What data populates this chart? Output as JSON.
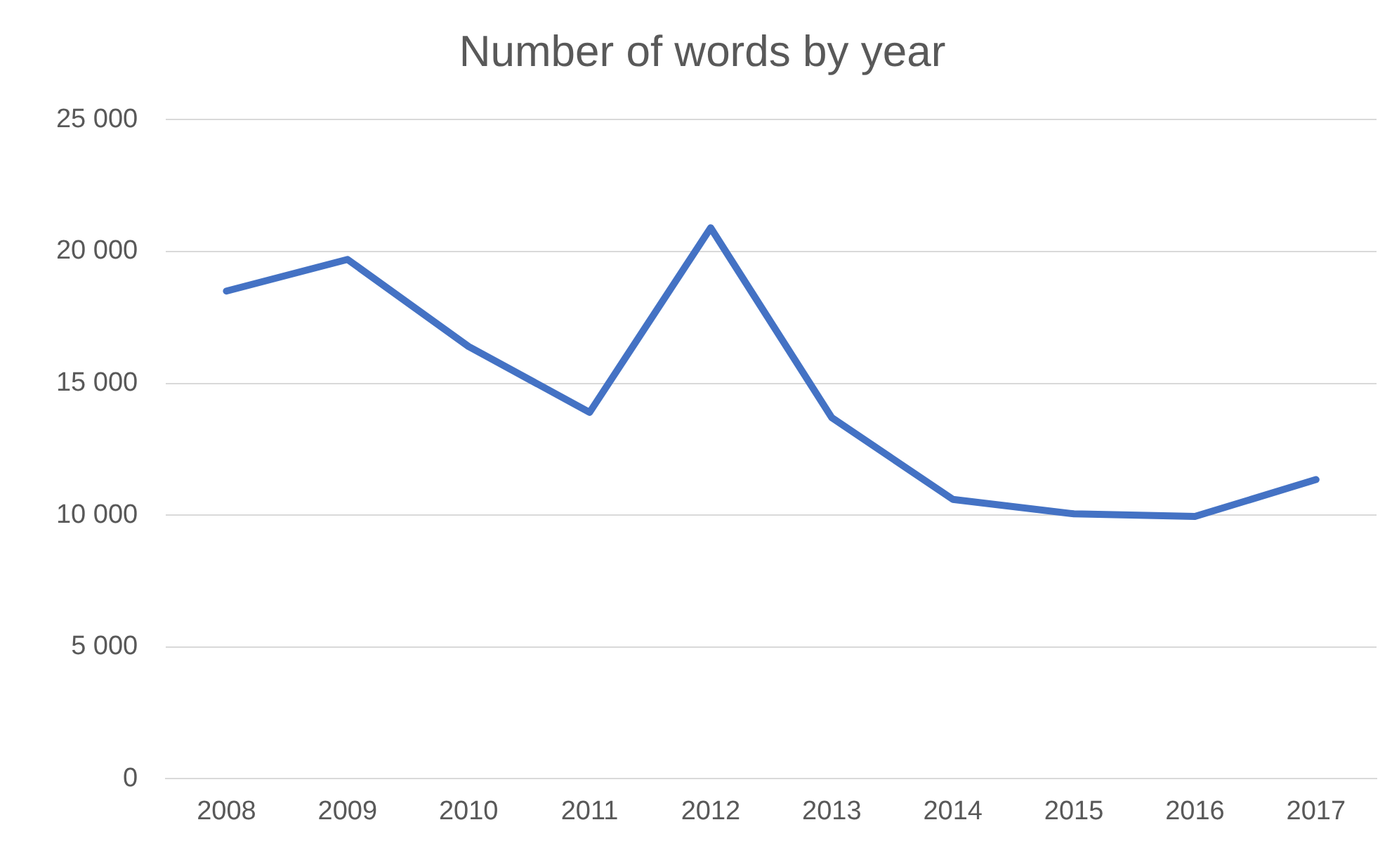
{
  "chart_data": {
    "type": "line",
    "title": "Number of words by year",
    "categories": [
      "2008",
      "2009",
      "2010",
      "2011",
      "2012",
      "2013",
      "2014",
      "2015",
      "2016",
      "2017"
    ],
    "series": [
      {
        "color": "#4472c4",
        "values": [
          18500,
          19700,
          16400,
          13900,
          20900,
          13700,
          10600,
          10050,
          9950,
          11350
        ]
      }
    ],
    "ylim": [
      0,
      25000
    ],
    "yticks": [
      {
        "value": 0,
        "label": "0"
      },
      {
        "value": 5000,
        "label": "5 000"
      },
      {
        "value": 10000,
        "label": "10 000"
      },
      {
        "value": 15000,
        "label": "15 000"
      },
      {
        "value": 20000,
        "label": "20 000"
      },
      {
        "value": 25000,
        "label": "25 000"
      }
    ],
    "grid": "y",
    "legend": false,
    "marker": "none",
    "line_style": "solid"
  }
}
